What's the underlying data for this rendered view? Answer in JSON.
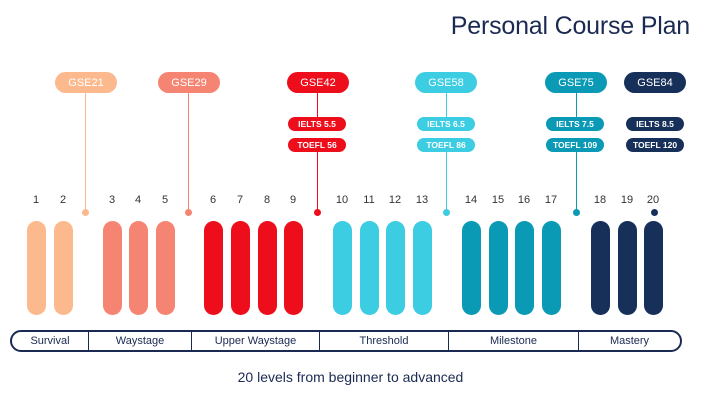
{
  "title": "Personal Course Plan",
  "subtitle": "20 levels from beginner to advanced",
  "colors": {
    "survival": "#fcb98d",
    "waystage": "#f68472",
    "upper_waystage": "#ee0e1b",
    "threshold": "#3ccde2",
    "milestone": "#0a9ab6",
    "mastery": "#17305a",
    "navy": "#1b2a52"
  },
  "markers": [
    {
      "gse": "GSE21",
      "color": "#fcb98d"
    },
    {
      "gse": "GSE29",
      "color": "#f68472"
    },
    {
      "gse": "GSE42",
      "color": "#ee0e1b",
      "ielts": "IELTS 5.5",
      "toefl": "TOEFL 56"
    },
    {
      "gse": "GSE58",
      "color": "#3ccde2",
      "ielts": "IELTS 6.5",
      "toefl": "TOEFL 86"
    },
    {
      "gse": "GSE75",
      "color": "#0a9ab6",
      "ielts": "IELTS 7.5",
      "toefl": "TOEFL 109"
    },
    {
      "gse": "GSE84",
      "color": "#17305a",
      "ielts": "IELTS 8.5",
      "toefl": "TOEFL 120"
    }
  ],
  "levels": [
    "1",
    "2",
    "3",
    "4",
    "5",
    "6",
    "7",
    "8",
    "9",
    "10",
    "11",
    "12",
    "13",
    "14",
    "15",
    "16",
    "17",
    "18",
    "19",
    "20"
  ],
  "stages": [
    "Survival",
    "Waystage",
    "Upper Waystage",
    "Threshold",
    "Milestone",
    "Mastery"
  ]
}
